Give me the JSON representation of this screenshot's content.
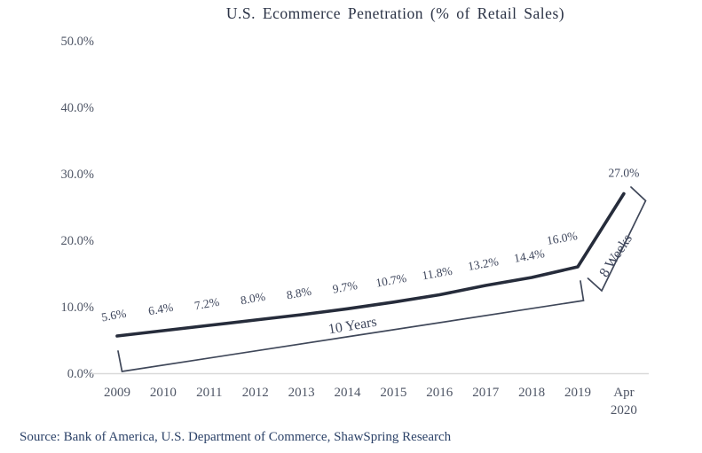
{
  "title": "U.S. Ecommerce  Penetration  (% of Retail  Sales)",
  "source": "Source: Bank of America, U.S. Department of Commerce, ShawSpring Research",
  "colors": {
    "line": "#262c3b",
    "data_label": "#3e465c",
    "axis_label": "#4e5565",
    "title_text": "#2b3346",
    "annotation": "#3f4759",
    "axis_line": "#d9d9d9",
    "source_text": "#2c4268",
    "background": "#ffffff"
  },
  "chart_data": {
    "type": "line",
    "title": "U.S. Ecommerce  Penetration  (% of Retail  Sales)",
    "categories": [
      "2009",
      "2010",
      "2011",
      "2012",
      "2013",
      "2014",
      "2015",
      "2016",
      "2017",
      "2018",
      "2019",
      "Apr 2020"
    ],
    "values": [
      5.6,
      6.4,
      7.2,
      8.0,
      8.8,
      9.7,
      10.7,
      11.8,
      13.2,
      14.4,
      16.0,
      27.0
    ],
    "data_labels": [
      "5.6%",
      "6.4%",
      "7.2%",
      "8.0%",
      "8.8%",
      "9.7%",
      "10.7%",
      "11.8%",
      "13.2%",
      "14.4%",
      "16.0%",
      "27.0%"
    ],
    "xlabel": "",
    "ylabel": "",
    "ylim": [
      0,
      50
    ],
    "ytick_values": [
      0,
      10,
      20,
      30,
      40,
      50
    ],
    "ytick_labels": [
      "0.0%",
      "10.0%",
      "20.0%",
      "30.0%",
      "40.0%",
      "50.0%"
    ],
    "grid": false,
    "legend": false,
    "annotations": [
      {
        "label": "10 Years",
        "target": "2009-2019 segment"
      },
      {
        "label": "8 Weeks",
        "target": "2019-Apr 2020 segment"
      }
    ]
  }
}
